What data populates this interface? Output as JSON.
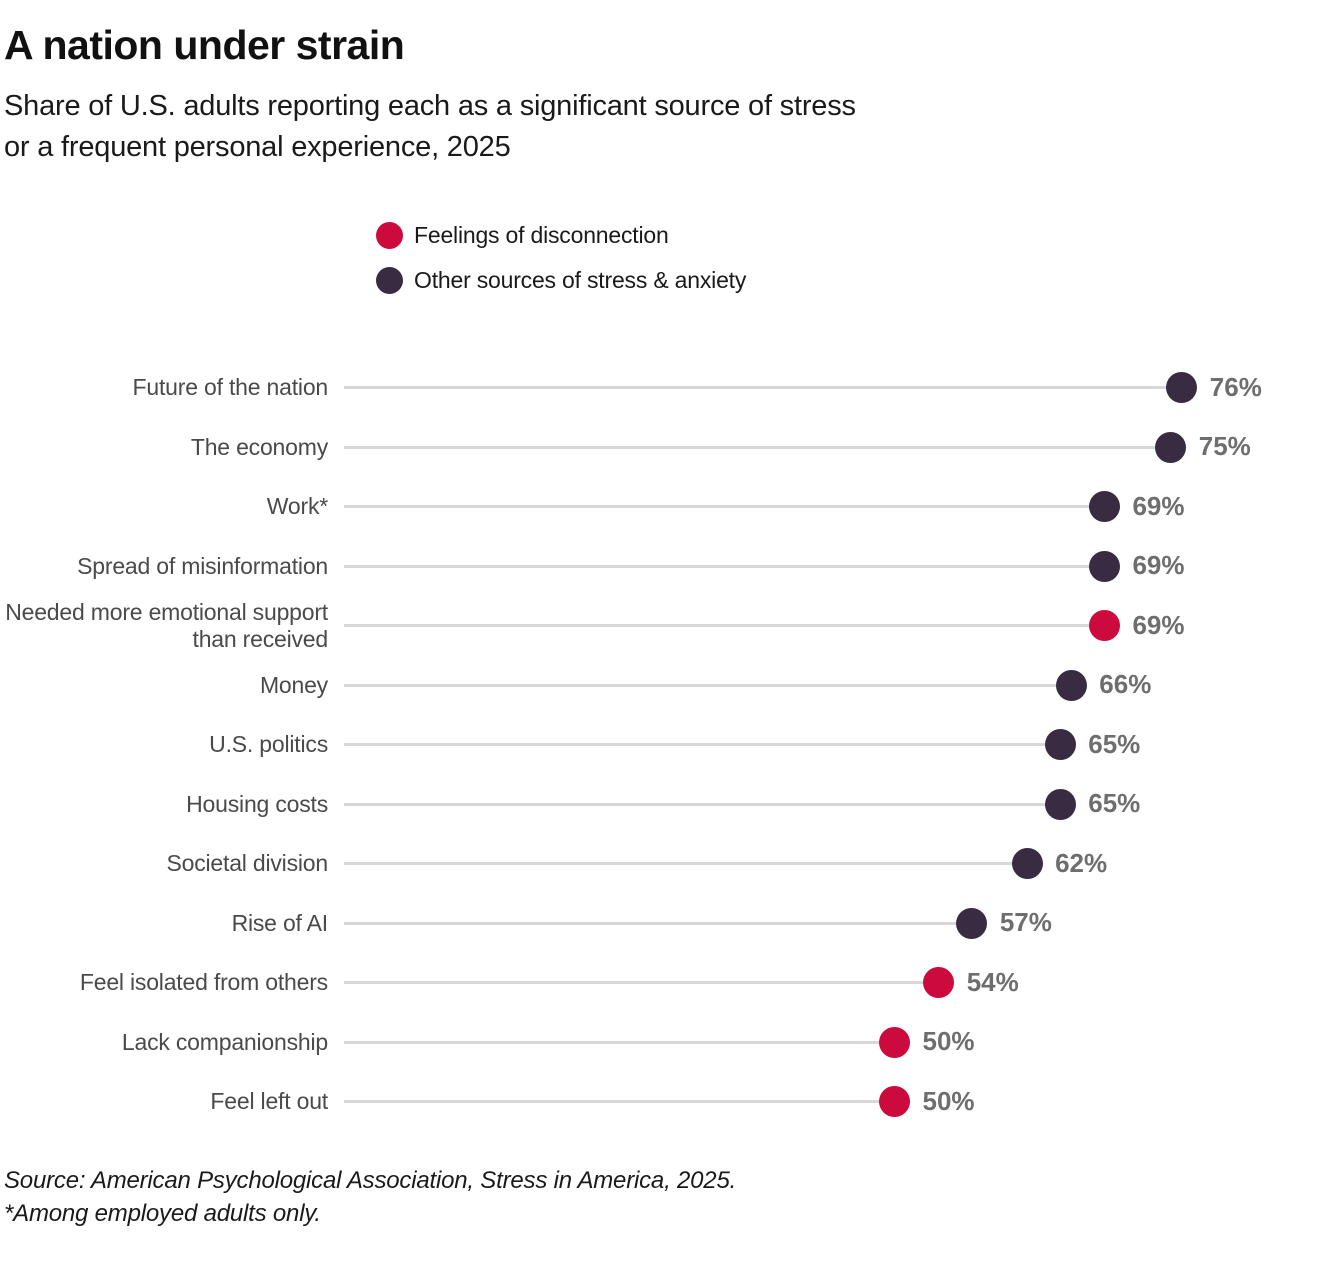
{
  "header": {
    "title": "A nation under strain",
    "subtitle_lines": [
      "Share of U.S. adults reporting each as a significant source of stress",
      "or a frequent personal experience, 2025"
    ]
  },
  "legend": {
    "items": [
      {
        "label": "Feelings of disconnection",
        "group": "disconnection"
      },
      {
        "label": "Other sources of stress & anxiety",
        "group": "other"
      }
    ]
  },
  "colors": {
    "disconnection": "#cc0a3e",
    "other": "#382b42",
    "track": "#d8d8d8",
    "value_label": "#6e6e6e",
    "category_label": "#4a4a4a"
  },
  "chart_data": {
    "type": "scatter",
    "variant": "lollipop-dot",
    "unit": "%",
    "xlim": [
      0,
      90
    ],
    "grid": false,
    "legend_position": "top-center",
    "title": "A nation under strain",
    "subtitle": "Share of U.S. adults reporting each as a significant source of stress or a frequent personal experience, 2025",
    "categories": [
      "Future of the nation",
      "The economy",
      "Work*",
      "Spread of misinformation",
      "Needed more emotional support than received",
      "Money",
      "U.S. politics",
      "Housing costs",
      "Societal division",
      "Rise of AI",
      "Feel isolated from others",
      "Lack companionship",
      "Feel left out"
    ],
    "values": [
      76,
      75,
      69,
      69,
      69,
      66,
      65,
      65,
      62,
      57,
      54,
      50,
      50
    ],
    "rows": [
      {
        "label": "Future of the nation",
        "value": 76,
        "display": "76%",
        "group": "other"
      },
      {
        "label": "The economy",
        "value": 75,
        "display": "75%",
        "group": "other"
      },
      {
        "label": "Work*",
        "value": 69,
        "display": "69%",
        "group": "other"
      },
      {
        "label": "Spread of misinformation",
        "value": 69,
        "display": "69%",
        "group": "other"
      },
      {
        "label": "Needed more emotional support than received",
        "value": 69,
        "display": "69%",
        "group": "disconnection"
      },
      {
        "label": "Money",
        "value": 66,
        "display": "66%",
        "group": "other"
      },
      {
        "label": "U.S. politics",
        "value": 65,
        "display": "65%",
        "group": "other"
      },
      {
        "label": "Housing costs",
        "value": 65,
        "display": "65%",
        "group": "other"
      },
      {
        "label": "Societal division",
        "value": 62,
        "display": "62%",
        "group": "other"
      },
      {
        "label": "Rise of AI",
        "value": 57,
        "display": "57%",
        "group": "other"
      },
      {
        "label": "Feel isolated from others",
        "value": 54,
        "display": "54%",
        "group": "disconnection"
      },
      {
        "label": "Lack companionship",
        "value": 50,
        "display": "50%",
        "group": "disconnection"
      },
      {
        "label": "Feel left out",
        "value": 50,
        "display": "50%",
        "group": "disconnection"
      }
    ]
  },
  "footer": {
    "source": "Source: American Psychological Association, Stress in America, 2025.",
    "note": "*Among employed adults only."
  }
}
